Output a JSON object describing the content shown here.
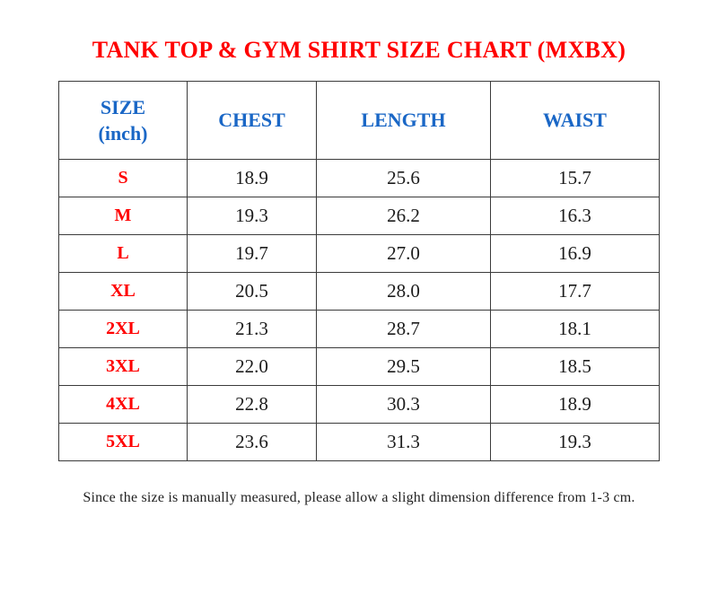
{
  "title": "TANK TOP & GYM SHIRT SIZE CHART (MXBX)",
  "footnote": "Since the size is manually measured, please allow a slight dimension difference from 1-3 cm.",
  "colors": {
    "title_red": "#FF0000",
    "header_blue": "#1A67C6",
    "size_label_red": "#FF0000",
    "value_black": "#1C1C1C",
    "border_gray": "#3B3B3B",
    "background": "#FFFFFF"
  },
  "chart_data": {
    "type": "table",
    "unit": "inch",
    "columns": [
      "SIZE\n(inch)",
      "CHEST",
      "LENGTH",
      "WAIST"
    ],
    "rows": [
      [
        "S",
        "18.9",
        "25.6",
        "15.7"
      ],
      [
        "M",
        "19.3",
        "26.2",
        "16.3"
      ],
      [
        "L",
        "19.7",
        "27.0",
        "16.9"
      ],
      [
        "XL",
        "20.5",
        "28.0",
        "17.7"
      ],
      [
        "2XL",
        "21.3",
        "28.7",
        "18.1"
      ],
      [
        "3XL",
        "22.0",
        "29.5",
        "18.5"
      ],
      [
        "4XL",
        "22.8",
        "30.3",
        "18.9"
      ],
      [
        "5XL",
        "23.6",
        "31.3",
        "19.3"
      ]
    ]
  }
}
